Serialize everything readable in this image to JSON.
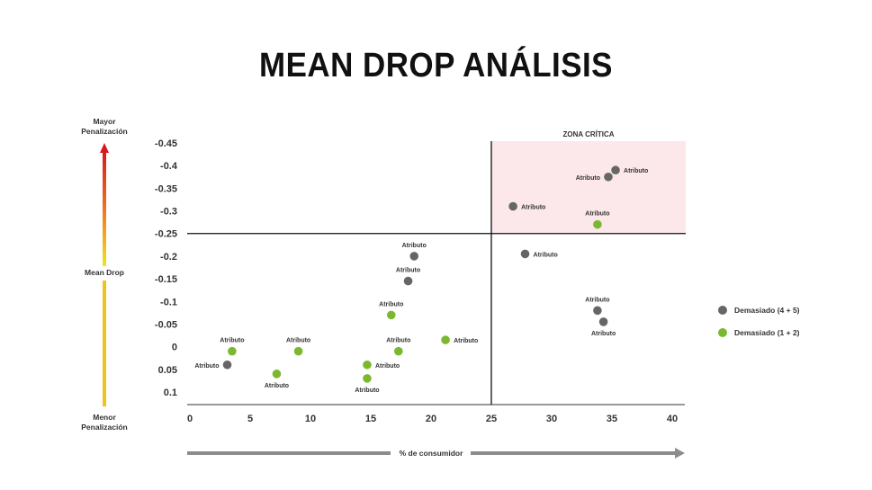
{
  "title": "MEAN DROP ANÁLISIS",
  "left_scale": {
    "top_label": [
      "Mayor",
      "Penalización"
    ],
    "middle_label": "Mean Drop",
    "bottom_label": [
      "Menor",
      "Penalización"
    ]
  },
  "x_axis_caption": "% de consumidor",
  "critical_zone_label": "ZONA CRÍTICA",
  "legend": [
    {
      "label": "Demasiado (4 + 5)",
      "color": "#666666"
    },
    {
      "label": "Demasiado (1 + 2)",
      "color": "#7cb82f"
    }
  ],
  "chart_data": {
    "type": "scatter",
    "title": "MEAN DROP ANÁLISIS",
    "xlabel": "% de consumidor",
    "ylabel": "Mean Drop",
    "xlim": [
      0,
      40
    ],
    "ylim": [
      0.1,
      -0.45
    ],
    "x_ticks": [
      "0",
      "5",
      "10",
      "15",
      "20",
      "25",
      "30",
      "35",
      "40"
    ],
    "y_ticks": [
      "-0.45",
      "-0.4",
      "-0.35",
      "-0.3",
      "-0.25",
      "-0.2",
      "-0.15",
      "-0.1",
      "-0.05",
      "0",
      "0.05",
      "0.1"
    ],
    "thresholds": {
      "x": 25,
      "y": -0.25
    },
    "grid": false,
    "legend_position": "right",
    "series": [
      {
        "name": "Demasiado (4 + 5)",
        "color": "#666666",
        "points": [
          {
            "x": 35.3,
            "y": -0.39,
            "label": "Atributo",
            "label_pos": "right"
          },
          {
            "x": 34.7,
            "y": -0.375,
            "label": "Atributo",
            "label_pos": "left"
          },
          {
            "x": 26.8,
            "y": -0.31,
            "label": "Atributo",
            "label_pos": "right"
          },
          {
            "x": 27.8,
            "y": -0.205,
            "label": "Atributo",
            "label_pos": "right"
          },
          {
            "x": 18.6,
            "y": -0.2,
            "label": "Atributo",
            "label_pos": "above"
          },
          {
            "x": 18.1,
            "y": -0.145,
            "label": "Atributo",
            "label_pos": "above"
          },
          {
            "x": 33.8,
            "y": -0.08,
            "label": "Atributo",
            "label_pos": "above"
          },
          {
            "x": 34.3,
            "y": -0.055,
            "label": "Atributo",
            "label_pos": "below"
          },
          {
            "x": 3.1,
            "y": 0.04,
            "label": "Atributo",
            "label_pos": "left"
          }
        ]
      },
      {
        "name": "Demasiado (1 + 2)",
        "color": "#7cb82f",
        "points": [
          {
            "x": 33.8,
            "y": -0.27,
            "label": "Atributo",
            "label_pos": "above"
          },
          {
            "x": 16.7,
            "y": -0.07,
            "label": "Atributo",
            "label_pos": "above"
          },
          {
            "x": 21.2,
            "y": -0.015,
            "label": "Atributo",
            "label_pos": "right"
          },
          {
            "x": 17.3,
            "y": 0.01,
            "label": "Atributo",
            "label_pos": "above"
          },
          {
            "x": 3.5,
            "y": 0.01,
            "label": "Atributo",
            "label_pos": "above"
          },
          {
            "x": 9.0,
            "y": 0.01,
            "label": "Atributo",
            "label_pos": "above"
          },
          {
            "x": 14.7,
            "y": 0.04,
            "label": "Atributo",
            "label_pos": "right"
          },
          {
            "x": 7.2,
            "y": 0.06,
            "label": "Atributo",
            "label_pos": "below"
          },
          {
            "x": 14.7,
            "y": 0.07,
            "label": "Atributo",
            "label_pos": "below"
          }
        ]
      }
    ]
  }
}
